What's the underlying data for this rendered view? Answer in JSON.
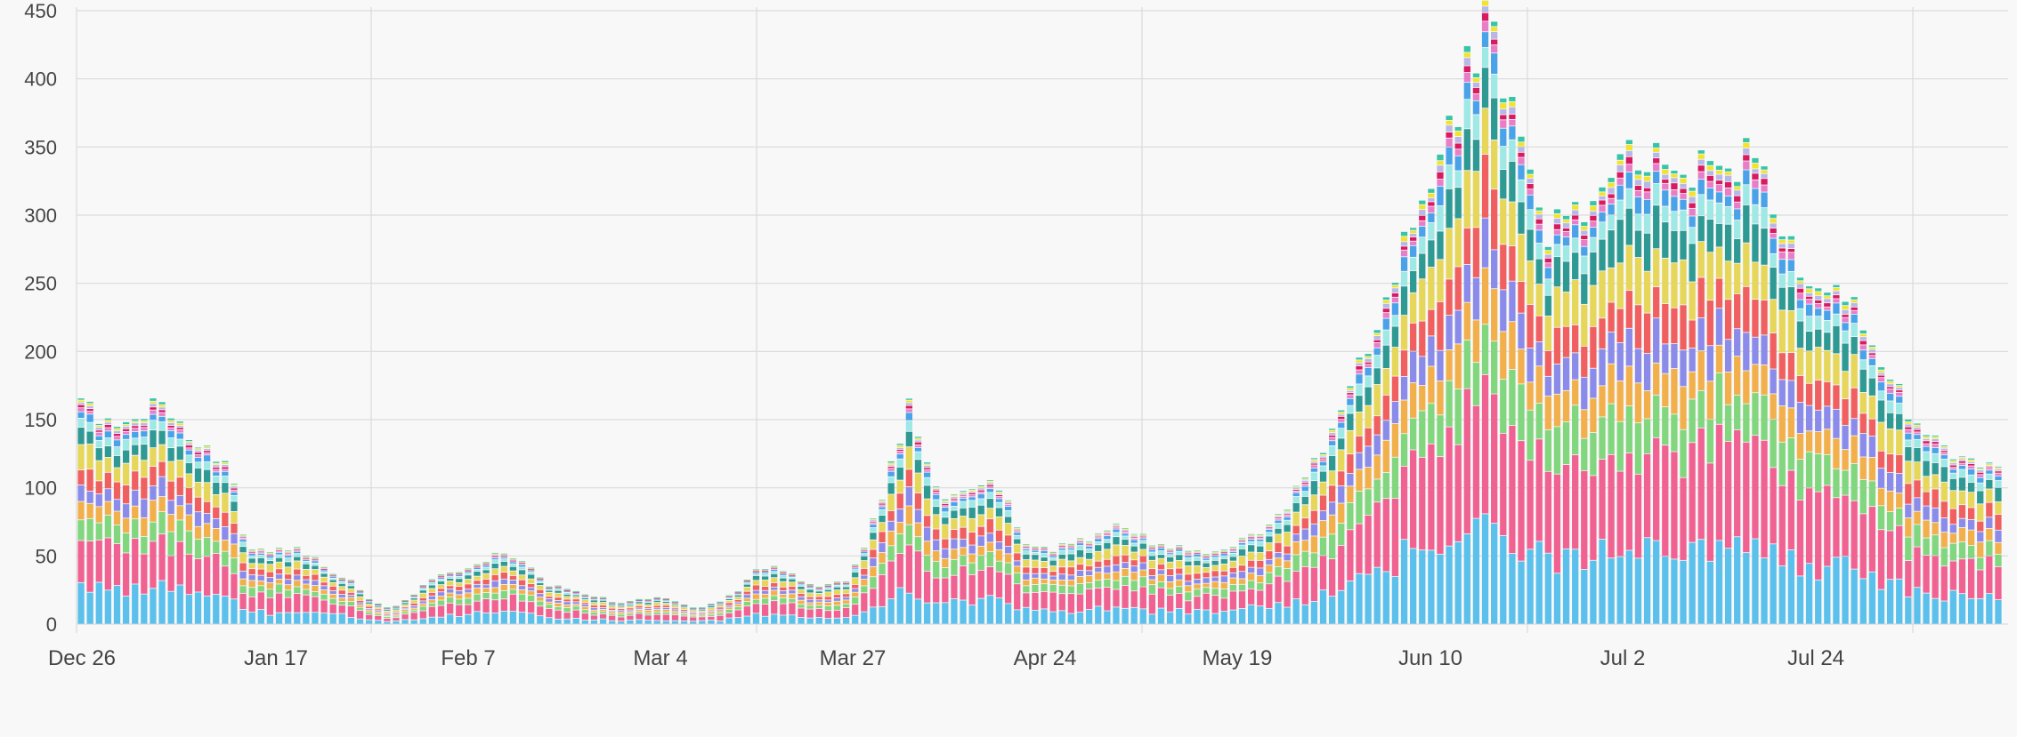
{
  "chart_data": {
    "type": "bar",
    "stacked": true,
    "title": "",
    "xlabel": "",
    "ylabel": "",
    "ylim": [
      0,
      450
    ],
    "y_ticks": [
      0,
      50,
      100,
      150,
      200,
      250,
      300,
      350,
      400,
      450
    ],
    "x_tick_labels": [
      "Dec 26",
      "Jan 17",
      "Feb 7",
      "Mar 4",
      "Mar 27",
      "Apr 24",
      "May 19",
      "Jun 10",
      "Jul 2",
      "Jul 24"
    ],
    "grid": true,
    "legend": "none",
    "num_bars": 214,
    "palette": [
      "#5bc0eb",
      "#f06292",
      "#81d67e",
      "#f2b04d",
      "#8b8bea",
      "#f06060",
      "#e6d65a",
      "#2f9a94",
      "#9ee8e6",
      "#4aa3e8",
      "#e87ec8",
      "#d81b60",
      "#b8b8e8",
      "#f2e32e",
      "#37c4a8"
    ],
    "anchors": [
      [
        0,
        166
      ],
      [
        1,
        162
      ],
      [
        3,
        152
      ],
      [
        6,
        145
      ],
      [
        8,
        150
      ],
      [
        10,
        158
      ],
      [
        12,
        162
      ],
      [
        14,
        150
      ],
      [
        16,
        147
      ],
      [
        18,
        135
      ],
      [
        20,
        130
      ],
      [
        22,
        118
      ],
      [
        23,
        108
      ],
      [
        24,
        105
      ],
      [
        25,
        65
      ],
      [
        27,
        55
      ],
      [
        30,
        55
      ],
      [
        33,
        58
      ],
      [
        35,
        52
      ],
      [
        37,
        48
      ],
      [
        38,
        40
      ],
      [
        40,
        36
      ],
      [
        42,
        30
      ],
      [
        44,
        20
      ],
      [
        46,
        15
      ],
      [
        48,
        12
      ],
      [
        50,
        18
      ],
      [
        52,
        25
      ],
      [
        54,
        33
      ],
      [
        56,
        38
      ],
      [
        58,
        40
      ],
      [
        60,
        40
      ],
      [
        62,
        45
      ],
      [
        64,
        52
      ],
      [
        66,
        50
      ],
      [
        68,
        45
      ],
      [
        70,
        38
      ],
      [
        72,
        30
      ],
      [
        75,
        25
      ],
      [
        78,
        22
      ],
      [
        80,
        20
      ],
      [
        82,
        17
      ],
      [
        84,
        15
      ],
      [
        86,
        18
      ],
      [
        88,
        20
      ],
      [
        90,
        19
      ],
      [
        92,
        16
      ],
      [
        94,
        13
      ],
      [
        96,
        13
      ],
      [
        98,
        16
      ],
      [
        100,
        20
      ],
      [
        102,
        27
      ],
      [
        104,
        38
      ],
      [
        106,
        44
      ],
      [
        108,
        40
      ],
      [
        110,
        35
      ],
      [
        112,
        30
      ],
      [
        114,
        28
      ],
      [
        116,
        30
      ],
      [
        118,
        32
      ],
      [
        120,
        45
      ],
      [
        122,
        70
      ],
      [
        124,
        100
      ],
      [
        126,
        130
      ],
      [
        127,
        145
      ],
      [
        128,
        160
      ],
      [
        129,
        150
      ],
      [
        130,
        128
      ],
      [
        131,
        105
      ],
      [
        132,
        97
      ],
      [
        134,
        95
      ],
      [
        136,
        96
      ],
      [
        138,
        98
      ],
      [
        140,
        100
      ],
      [
        142,
        102
      ],
      [
        143,
        95
      ],
      [
        144,
        82
      ],
      [
        145,
        62
      ],
      [
        147,
        55
      ],
      [
        150,
        55
      ],
      [
        153,
        58
      ],
      [
        156,
        62
      ],
      [
        158,
        68
      ],
      [
        160,
        72
      ],
      [
        162,
        68
      ],
      [
        164,
        64
      ],
      [
        166,
        60
      ],
      [
        168,
        58
      ],
      [
        170,
        57
      ],
      [
        172,
        55
      ],
      [
        174,
        54
      ],
      [
        176,
        55
      ],
      [
        178,
        60
      ],
      [
        180,
        65
      ],
      [
        182,
        68
      ],
      [
        184,
        75
      ],
      [
        186,
        85
      ],
      [
        188,
        100
      ],
      [
        190,
        115
      ],
      [
        192,
        130
      ],
      [
        194,
        150
      ],
      [
        196,
        175
      ],
      [
        198,
        200
      ],
      [
        200,
        225
      ],
      [
        202,
        250
      ],
      [
        204,
        275
      ],
      [
        206,
        300
      ],
      [
        208,
        325
      ],
      [
        210,
        355
      ],
      [
        212,
        380
      ],
      [
        214,
        405
      ],
      [
        216,
        425
      ],
      [
        217,
        445
      ],
      [
        218,
        430
      ],
      [
        219,
        420
      ],
      [
        220,
        400
      ],
      [
        221,
        385
      ],
      [
        222,
        360
      ],
      [
        223,
        340
      ],
      [
        224,
        320
      ],
      [
        225,
        305
      ],
      [
        226,
        292
      ],
      [
        228,
        290
      ],
      [
        230,
        295
      ],
      [
        232,
        302
      ],
      [
        234,
        312
      ],
      [
        236,
        325
      ],
      [
        238,
        335
      ],
      [
        240,
        340
      ],
      [
        242,
        348
      ],
      [
        244,
        350
      ],
      [
        246,
        345
      ],
      [
        248,
        340
      ],
      [
        250,
        340
      ],
      [
        252,
        342
      ],
      [
        254,
        345
      ],
      [
        256,
        345
      ],
      [
        258,
        342
      ],
      [
        260,
        335
      ],
      [
        262,
        300
      ],
      [
        264,
        280
      ],
      [
        266,
        265
      ],
      [
        268,
        260
      ],
      [
        270,
        255
      ],
      [
        272,
        240
      ],
      [
        274,
        225
      ],
      [
        276,
        210
      ],
      [
        278,
        190
      ],
      [
        280,
        175
      ],
      [
        282,
        160
      ],
      [
        284,
        150
      ],
      [
        286,
        140
      ],
      [
        288,
        132
      ],
      [
        290,
        125
      ],
      [
        292,
        120
      ],
      [
        294,
        118
      ],
      [
        296,
        115
      ]
    ]
  }
}
